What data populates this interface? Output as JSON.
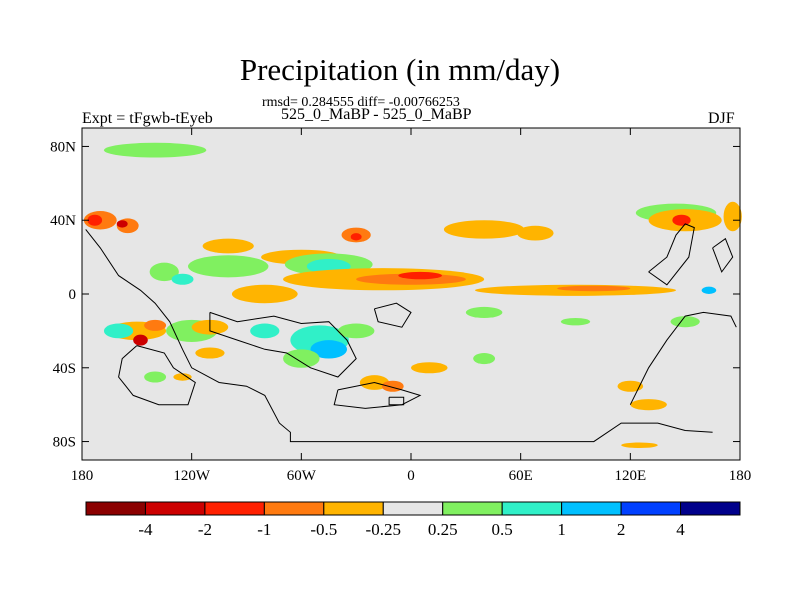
{
  "chart_data": {
    "type": "heatmap",
    "title": "Precipitation (in mm/day)",
    "stats_line": "rmsd= 0.284555 diff= -0.00766253",
    "subtitle": "525_0_MaBP - 525_0_MaBP",
    "left_label": "Expt = tFgwb-tEyeb",
    "right_label": "DJF",
    "xlim": [
      -180,
      180
    ],
    "ylim": [
      -90,
      90
    ],
    "x_ticks": [
      {
        "value": -180,
        "label": "180"
      },
      {
        "value": -120,
        "label": "120W"
      },
      {
        "value": -60,
        "label": "60W"
      },
      {
        "value": 0,
        "label": "0"
      },
      {
        "value": 60,
        "label": "60E"
      },
      {
        "value": 120,
        "label": "120E"
      },
      {
        "value": 180,
        "label": "180"
      }
    ],
    "y_ticks": [
      {
        "value": 80,
        "label": "80N"
      },
      {
        "value": 40,
        "label": "40N"
      },
      {
        "value": 0,
        "label": "0"
      },
      {
        "value": -40,
        "label": "40S"
      },
      {
        "value": -80,
        "label": "80S"
      }
    ],
    "colorbar": {
      "levels": [
        "-4",
        "-2",
        "-1",
        "-0.5",
        "-0.25",
        "0.25",
        "0.5",
        "1",
        "2",
        "4"
      ],
      "colors": [
        "#8b0000",
        "#cc0000",
        "#ff2000",
        "#ff7a10",
        "#ffb400",
        "#e6e6e6",
        "#80f060",
        "#30f0c8",
        "#00c0ff",
        "#0040ff",
        "#00008b"
      ]
    },
    "background_color": "#e6e6e6",
    "anomalies": [
      {
        "lon": -140,
        "lat": 78,
        "rx": 28,
        "ry": 4,
        "cls": 6
      },
      {
        "lon": -170,
        "lat": 40,
        "rx": 9,
        "ry": 5,
        "cls": 3
      },
      {
        "lon": -173,
        "lat": 40,
        "rx": 4,
        "ry": 3,
        "cls": 2
      },
      {
        "lon": -155,
        "lat": 37,
        "rx": 6,
        "ry": 4,
        "cls": 3
      },
      {
        "lon": -158,
        "lat": 38,
        "rx": 3,
        "ry": 2,
        "cls": 1
      },
      {
        "lon": -100,
        "lat": 26,
        "rx": 14,
        "ry": 4,
        "cls": 4
      },
      {
        "lon": -100,
        "lat": 15,
        "rx": 22,
        "ry": 6,
        "cls": 6
      },
      {
        "lon": -135,
        "lat": 12,
        "rx": 8,
        "ry": 5,
        "cls": 6
      },
      {
        "lon": -125,
        "lat": 8,
        "rx": 6,
        "ry": 3,
        "cls": 7
      },
      {
        "lon": -60,
        "lat": 20,
        "rx": 22,
        "ry": 4,
        "cls": 4
      },
      {
        "lon": -30,
        "lat": 32,
        "rx": 8,
        "ry": 4,
        "cls": 3
      },
      {
        "lon": -30,
        "lat": 31,
        "rx": 3,
        "ry": 2,
        "cls": 2
      },
      {
        "lon": -45,
        "lat": 16,
        "rx": 24,
        "ry": 6,
        "cls": 6
      },
      {
        "lon": -45,
        "lat": 15,
        "rx": 12,
        "ry": 4,
        "cls": 7
      },
      {
        "lon": -15,
        "lat": 8,
        "rx": 55,
        "ry": 6,
        "cls": 4
      },
      {
        "lon": 0,
        "lat": 8,
        "rx": 30,
        "ry": 3,
        "cls": 3
      },
      {
        "lon": 5,
        "lat": 10,
        "rx": 12,
        "ry": 2,
        "cls": 2
      },
      {
        "lon": -80,
        "lat": 0,
        "rx": 18,
        "ry": 5,
        "cls": 4
      },
      {
        "lon": 90,
        "lat": 2,
        "rx": 55,
        "ry": 3,
        "cls": 4
      },
      {
        "lon": 100,
        "lat": 3,
        "rx": 20,
        "ry": 1.5,
        "cls": 3
      },
      {
        "lon": 40,
        "lat": 35,
        "rx": 22,
        "ry": 5,
        "cls": 4
      },
      {
        "lon": 68,
        "lat": 33,
        "rx": 10,
        "ry": 4,
        "cls": 4
      },
      {
        "lon": 145,
        "lat": 44,
        "rx": 22,
        "ry": 5,
        "cls": 6
      },
      {
        "lon": 150,
        "lat": 40,
        "rx": 20,
        "ry": 6,
        "cls": 4
      },
      {
        "lon": 148,
        "lat": 40,
        "rx": 5,
        "ry": 3,
        "cls": 2
      },
      {
        "lon": 176,
        "lat": 42,
        "rx": 5,
        "ry": 8,
        "cls": 4
      },
      {
        "lon": 40,
        "lat": -10,
        "rx": 10,
        "ry": 3,
        "cls": 6
      },
      {
        "lon": 90,
        "lat": -15,
        "rx": 8,
        "ry": 2,
        "cls": 6
      },
      {
        "lon": -150,
        "lat": -20,
        "rx": 16,
        "ry": 5,
        "cls": 4
      },
      {
        "lon": -160,
        "lat": -20,
        "rx": 8,
        "ry": 4,
        "cls": 7
      },
      {
        "lon": -140,
        "lat": -17,
        "rx": 6,
        "ry": 3,
        "cls": 3
      },
      {
        "lon": -148,
        "lat": -25,
        "rx": 4,
        "ry": 3,
        "cls": 1
      },
      {
        "lon": -120,
        "lat": -20,
        "rx": 14,
        "ry": 6,
        "cls": 6
      },
      {
        "lon": -110,
        "lat": -18,
        "rx": 10,
        "ry": 4,
        "cls": 4
      },
      {
        "lon": -80,
        "lat": -20,
        "rx": 8,
        "ry": 4,
        "cls": 7
      },
      {
        "lon": -50,
        "lat": -25,
        "rx": 16,
        "ry": 8,
        "cls": 7
      },
      {
        "lon": -45,
        "lat": -30,
        "rx": 10,
        "ry": 5,
        "cls": 8
      },
      {
        "lon": -30,
        "lat": -20,
        "rx": 10,
        "ry": 4,
        "cls": 6
      },
      {
        "lon": -60,
        "lat": -35,
        "rx": 10,
        "ry": 5,
        "cls": 6
      },
      {
        "lon": -110,
        "lat": -32,
        "rx": 8,
        "ry": 3,
        "cls": 4
      },
      {
        "lon": -140,
        "lat": -45,
        "rx": 6,
        "ry": 3,
        "cls": 6
      },
      {
        "lon": -125,
        "lat": -45,
        "rx": 5,
        "ry": 2,
        "cls": 4
      },
      {
        "lon": -20,
        "lat": -48,
        "rx": 8,
        "ry": 4,
        "cls": 4
      },
      {
        "lon": -10,
        "lat": -50,
        "rx": 6,
        "ry": 3,
        "cls": 3
      },
      {
        "lon": 10,
        "lat": -40,
        "rx": 10,
        "ry": 3,
        "cls": 4
      },
      {
        "lon": 40,
        "lat": -35,
        "rx": 6,
        "ry": 3,
        "cls": 6
      },
      {
        "lon": 120,
        "lat": -50,
        "rx": 7,
        "ry": 3,
        "cls": 4
      },
      {
        "lon": 130,
        "lat": -60,
        "rx": 10,
        "ry": 3,
        "cls": 4
      },
      {
        "lon": 150,
        "lat": -15,
        "rx": 8,
        "ry": 3,
        "cls": 6
      },
      {
        "lon": 163,
        "lat": 2,
        "rx": 4,
        "ry": 2,
        "cls": 8
      },
      {
        "lon": 125,
        "lat": -82,
        "rx": 10,
        "ry": 1.5,
        "cls": 4
      }
    ],
    "coastlines": [
      [
        [
          -178,
          35
        ],
        [
          -170,
          25
        ],
        [
          -160,
          10
        ],
        [
          -148,
          2
        ],
        [
          -140,
          -5
        ],
        [
          -132,
          -15
        ],
        [
          -125,
          -30
        ],
        [
          -120,
          -40
        ],
        [
          -105,
          -48
        ],
        [
          -90,
          -50
        ],
        [
          -80,
          -55
        ],
        [
          -72,
          -70
        ],
        [
          -66,
          -75
        ],
        [
          -66,
          -80
        ],
        [
          -20,
          -80
        ],
        [
          40,
          -80
        ],
        [
          100,
          -80
        ],
        [
          115,
          -70
        ],
        [
          135,
          -70
        ],
        [
          150,
          -74
        ],
        [
          165,
          -75
        ]
      ],
      [
        [
          -150,
          -28
        ],
        [
          -135,
          -32
        ],
        [
          -130,
          -40
        ],
        [
          -118,
          -48
        ],
        [
          -122,
          -60
        ],
        [
          -138,
          -60
        ],
        [
          -152,
          -55
        ],
        [
          -160,
          -45
        ],
        [
          -158,
          -35
        ],
        [
          -150,
          -28
        ]
      ],
      [
        [
          -110,
          -10
        ],
        [
          -95,
          -15
        ],
        [
          -75,
          -12
        ],
        [
          -60,
          -16
        ],
        [
          -45,
          -15
        ],
        [
          -35,
          -25
        ],
        [
          -30,
          -35
        ],
        [
          -40,
          -45
        ],
        [
          -55,
          -40
        ],
        [
          -68,
          -32
        ],
        [
          -80,
          -30
        ],
        [
          -95,
          -25
        ],
        [
          -110,
          -20
        ],
        [
          -110,
          -10
        ]
      ],
      [
        [
          -40,
          -52
        ],
        [
          -20,
          -48
        ],
        [
          -5,
          -52
        ],
        [
          5,
          -55
        ],
        [
          -5,
          -60
        ],
        [
          -25,
          -62
        ],
        [
          -42,
          -60
        ],
        [
          -40,
          -52
        ]
      ],
      [
        [
          -12,
          -56
        ],
        [
          -4,
          -56
        ],
        [
          -4,
          -60
        ],
        [
          -12,
          -60
        ],
        [
          -12,
          -56
        ]
      ],
      [
        [
          -20,
          -8
        ],
        [
          -8,
          -5
        ],
        [
          0,
          -10
        ],
        [
          -5,
          -18
        ],
        [
          -18,
          -15
        ],
        [
          -20,
          -8
        ]
      ],
      [
        [
          130,
          12
        ],
        [
          140,
          20
        ],
        [
          145,
          32
        ],
        [
          150,
          38
        ],
        [
          155,
          36
        ],
        [
          152,
          20
        ],
        [
          140,
          5
        ],
        [
          130,
          12
        ]
      ],
      [
        [
          165,
          25
        ],
        [
          172,
          30
        ],
        [
          176,
          20
        ],
        [
          170,
          12
        ],
        [
          165,
          25
        ]
      ],
      [
        [
          120,
          -60
        ],
        [
          130,
          -40
        ],
        [
          140,
          -25
        ],
        [
          150,
          -12
        ],
        [
          160,
          -10
        ],
        [
          175,
          -12
        ],
        [
          178,
          -18
        ]
      ]
    ]
  }
}
